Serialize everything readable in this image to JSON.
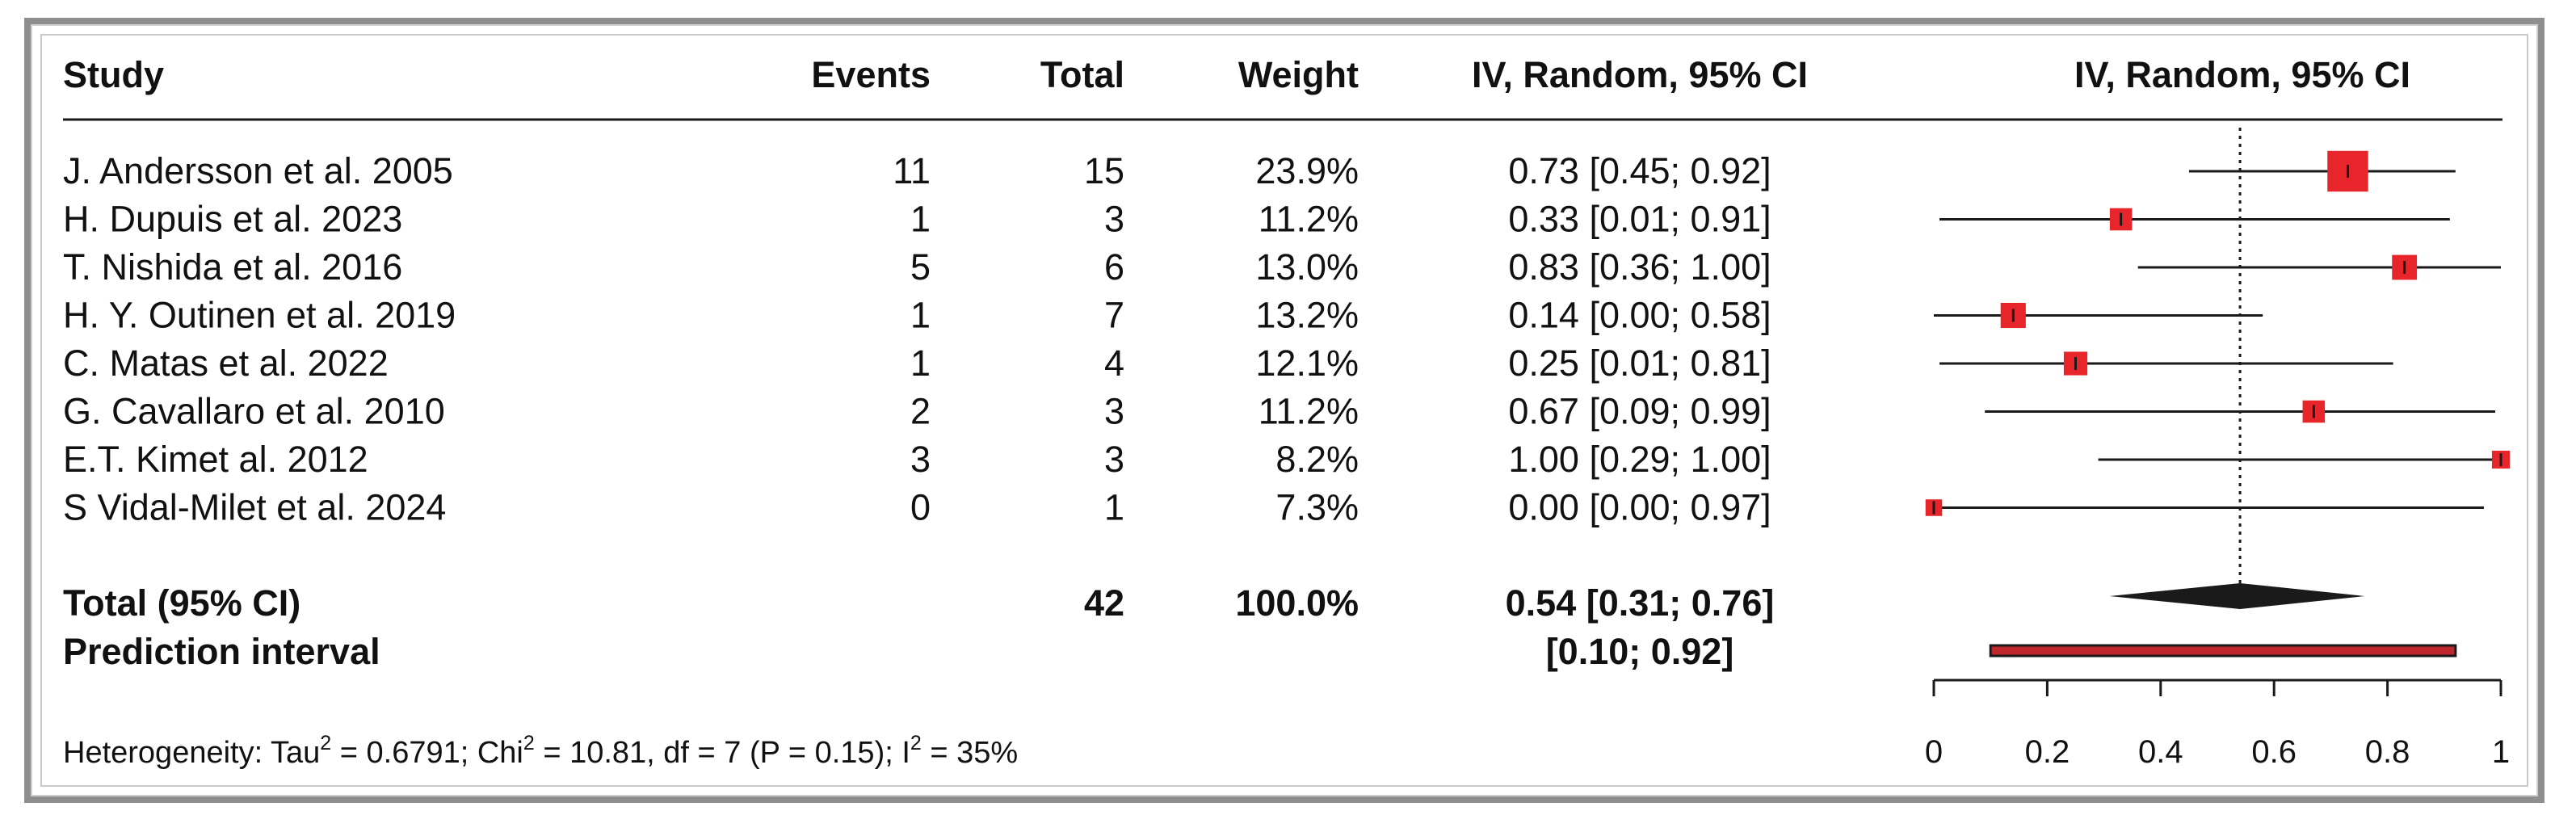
{
  "header": {
    "study": "Study",
    "events": "Events",
    "total": "Total",
    "weight": "Weight",
    "ci": "IV, Random, 95% CI",
    "plot": "IV, Random, 95% CI"
  },
  "studies": [
    {
      "name": "J. Andersson et al. 2005",
      "events": "11",
      "total": "15",
      "weight": "23.9%",
      "ci_text": "0.73 [0.45; 0.92]"
    },
    {
      "name": "H. Dupuis et al. 2023",
      "events": "1",
      "total": "3",
      "weight": "11.2%",
      "ci_text": "0.33 [0.01; 0.91]"
    },
    {
      "name": "T. Nishida et al. 2016",
      "events": "5",
      "total": "6",
      "weight": "13.0%",
      "ci_text": "0.83 [0.36; 1.00]"
    },
    {
      "name": "H. Y. Outinen et al. 2019",
      "events": "1",
      "total": "7",
      "weight": "13.2%",
      "ci_text": "0.14 [0.00; 0.58]"
    },
    {
      "name": "C. Matas et  al. 2022",
      "events": "1",
      "total": "4",
      "weight": "12.1%",
      "ci_text": "0.25 [0.01; 0.81]"
    },
    {
      "name": "G. Cavallaro et  al. 2010",
      "events": "2",
      "total": "3",
      "weight": "11.2%",
      "ci_text": "0.67 [0.09; 0.99]"
    },
    {
      "name": "E.T. Kimet al. 2012",
      "events": "3",
      "total": "3",
      "weight": "8.2%",
      "ci_text": "1.00 [0.29; 1.00]"
    },
    {
      "name": "S Vidal-Milet et al. 2024",
      "events": "0",
      "total": "1",
      "weight": "7.3%",
      "ci_text": "0.00 [0.00; 0.97]"
    }
  ],
  "total_row": {
    "label": "Total (95% CI)",
    "total": "42",
    "weight": "100.0%",
    "ci_text": "0.54 [0.31; 0.76]"
  },
  "prediction_row": {
    "label": "Prediction interval",
    "ci_text": "[0.10; 0.92]"
  },
  "heterogeneity": {
    "prefix": "Heterogeneity: Tau",
    "tau_sup": "2",
    "tau_val": " = 0.6791; Chi",
    "chi_sup": "2",
    "chi_val": " = 10.81, df = 7 (P = 0.15); I",
    "i_sup": "2",
    "i_val": " = 35%"
  },
  "colors": {
    "square": "#e8252b",
    "diamond": "#1a1a1a",
    "prediction_fill": "#c0272d",
    "line": "#1a1a1a"
  },
  "chart_data": {
    "type": "forest",
    "xlim": [
      0,
      1
    ],
    "xticks": [
      "0",
      "0.2",
      "0.4",
      "0.6",
      "0.8",
      "1"
    ],
    "reference_line": 0.54,
    "points": [
      {
        "est": 0.73,
        "lo": 0.45,
        "hi": 0.92,
        "weight": 23.9
      },
      {
        "est": 0.33,
        "lo": 0.01,
        "hi": 0.91,
        "weight": 11.2
      },
      {
        "est": 0.83,
        "lo": 0.36,
        "hi": 1.0,
        "weight": 13.0
      },
      {
        "est": 0.14,
        "lo": 0.0,
        "hi": 0.58,
        "weight": 13.2
      },
      {
        "est": 0.25,
        "lo": 0.01,
        "hi": 0.81,
        "weight": 12.1
      },
      {
        "est": 0.67,
        "lo": 0.09,
        "hi": 0.99,
        "weight": 11.2
      },
      {
        "est": 1.0,
        "lo": 0.29,
        "hi": 1.0,
        "weight": 8.2
      },
      {
        "est": 0.0,
        "lo": 0.0,
        "hi": 0.97,
        "weight": 7.3
      }
    ],
    "pooled": {
      "est": 0.54,
      "lo": 0.31,
      "hi": 0.76
    },
    "prediction": {
      "lo": 0.1,
      "hi": 0.92
    }
  }
}
